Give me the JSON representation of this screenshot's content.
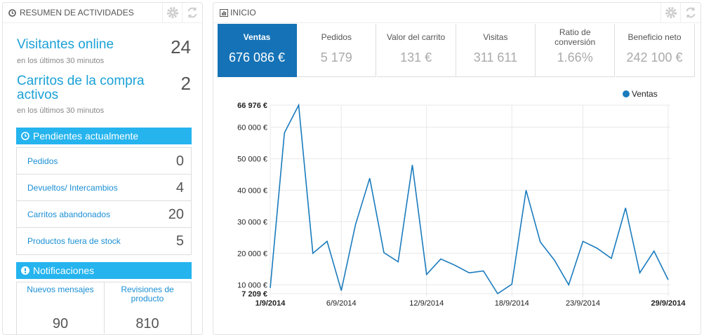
{
  "left_panel": {
    "title": "RESUMEN DE ACTIVIDADES",
    "stats": [
      {
        "label": "Visitantes online",
        "value": 24,
        "note": "en los últimos 30 minutos"
      },
      {
        "label": "Carritos de la compra activos",
        "value": 2,
        "note": "en los últimos 30 minutos"
      }
    ],
    "pending": {
      "title": "Pendientes actualmente",
      "items": [
        {
          "label": "Pedidos",
          "value": 0
        },
        {
          "label": "Devueltos/ Intercambios",
          "value": 4
        },
        {
          "label": "Carritos abandonados",
          "value": 20
        },
        {
          "label": "Productos fuera de stock",
          "value": 5
        }
      ]
    },
    "notifications": {
      "title": "Notificaciones",
      "items": [
        {
          "label": "Nuevos mensajes",
          "value": 90
        },
        {
          "label": "Revisiones de producto",
          "value": 810
        }
      ]
    }
  },
  "right_panel": {
    "title": "INICIO",
    "kpis": [
      {
        "label": "Ventas",
        "value": "676 086 €"
      },
      {
        "label": "Pedidos",
        "value": "5 179"
      },
      {
        "label": "Valor del carrito",
        "value": "131 €"
      },
      {
        "label": "Visitas",
        "value": "311 611"
      },
      {
        "label": "Ratio de conversión",
        "value": "1.66%"
      },
      {
        "label": "Beneficio neto",
        "value": "242 100 €"
      }
    ]
  },
  "chart_data": {
    "type": "line",
    "x": [
      1,
      2,
      3,
      4,
      5,
      6,
      7,
      8,
      9,
      10,
      11,
      12,
      13,
      14,
      15,
      16,
      17,
      18,
      19,
      20,
      21,
      22,
      23,
      24,
      25,
      26,
      27,
      28,
      29
    ],
    "series": [
      {
        "name": "Ventas",
        "color": "#1a7bbd",
        "values": [
          9000,
          58200,
          66976,
          20000,
          23800,
          8200,
          29100,
          43800,
          20200,
          17300,
          48000,
          13300,
          18200,
          16200,
          13800,
          14400,
          7209,
          10200,
          40000,
          23600,
          17800,
          10000,
          23800,
          21600,
          18400,
          34400,
          13800,
          20700,
          11600
        ]
      }
    ],
    "xlim": [
      1,
      29
    ],
    "xticks": [
      {
        "value": 1,
        "label": "1/9/2014"
      },
      {
        "value": 6,
        "label": "6/9/2014"
      },
      {
        "value": 12,
        "label": "12/9/2014"
      },
      {
        "value": 18,
        "label": "18/9/2014"
      },
      {
        "value": 23,
        "label": "23/9/2014"
      },
      {
        "value": 29,
        "label": "29/9/2014"
      }
    ],
    "ylim": [
      7209,
      66976
    ],
    "yticks": [
      {
        "value": 7209,
        "label": "7 209 €"
      },
      {
        "value": 10000,
        "label": "10 000 €"
      },
      {
        "value": 20000,
        "label": "20 000 €"
      },
      {
        "value": 30000,
        "label": "30 000 €"
      },
      {
        "value": 40000,
        "label": "40 000 €"
      },
      {
        "value": 50000,
        "label": "50 000 €"
      },
      {
        "value": 60000,
        "label": "60 000 €"
      },
      {
        "value": 66976,
        "label": "66 976 €"
      }
    ],
    "grid": true,
    "legend": "top-right"
  }
}
